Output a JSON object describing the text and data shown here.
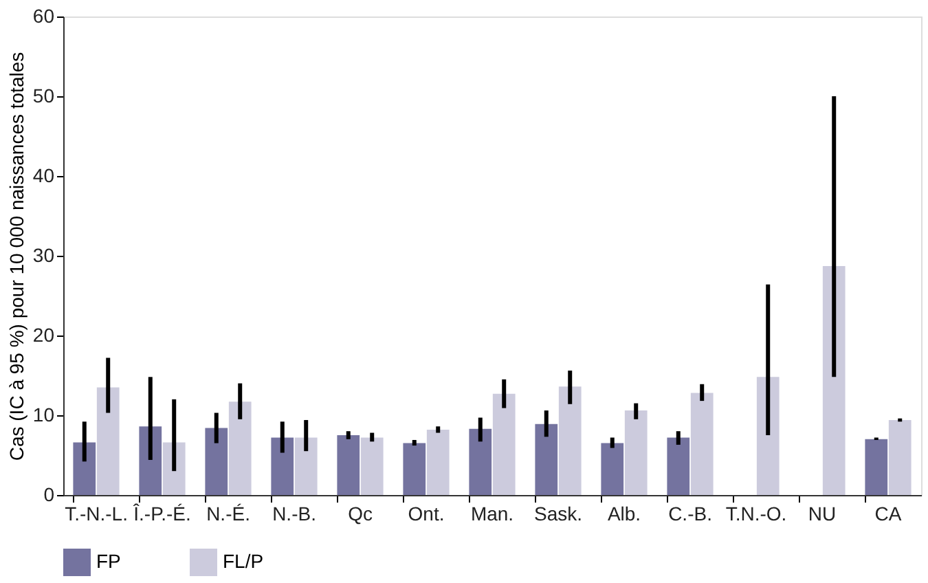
{
  "chart_data": {
    "type": "bar",
    "ylabel": "Cas (IC à 95 %) pour 10 000 naissances totales",
    "categories": [
      "T.-N.-L.",
      "Î.-P.-É.",
      "N.-É.",
      "N.-B.",
      "Qc",
      "Ont.",
      "Man.",
      "Sask.",
      "Alb.",
      "C.-B.",
      "T.N.-O.",
      "NU",
      "CA"
    ],
    "series": [
      {
        "name": "FP",
        "color": "#74739f",
        "values": [
          6.6,
          8.6,
          8.4,
          7.2,
          7.5,
          6.5,
          8.3,
          8.9,
          6.5,
          7.2,
          null,
          null,
          7.0
        ],
        "errors": [
          [
            4.2,
            9.2
          ],
          [
            4.4,
            14.8
          ],
          [
            6.5,
            10.3
          ],
          [
            5.3,
            9.2
          ],
          [
            7.0,
            8.0
          ],
          [
            6.2,
            6.9
          ],
          [
            6.7,
            9.7
          ],
          [
            7.3,
            10.6
          ],
          [
            5.9,
            7.2
          ],
          [
            6.3,
            8.0
          ],
          null,
          null,
          [
            6.9,
            7.2
          ]
        ]
      },
      {
        "name": "FL/P",
        "color": "#cccbdd",
        "values": [
          13.5,
          6.6,
          11.7,
          7.2,
          7.2,
          8.2,
          12.7,
          13.6,
          10.6,
          12.8,
          14.8,
          28.7,
          9.4
        ],
        "errors": [
          [
            10.3,
            17.2
          ],
          [
            3.0,
            12.0
          ],
          [
            9.5,
            14.0
          ],
          [
            5.5,
            9.4
          ],
          [
            6.7,
            7.8
          ],
          [
            7.8,
            8.6
          ],
          [
            10.9,
            14.5
          ],
          [
            11.4,
            15.6
          ],
          [
            9.5,
            11.5
          ],
          [
            11.8,
            13.9
          ],
          [
            7.5,
            26.4
          ],
          [
            14.8,
            50.0
          ],
          [
            9.2,
            9.6
          ]
        ]
      }
    ],
    "ylim": [
      0,
      60
    ],
    "yticks": [
      0,
      10,
      20,
      30,
      40,
      50,
      60
    ],
    "grid": false,
    "legend": "bottom"
  }
}
